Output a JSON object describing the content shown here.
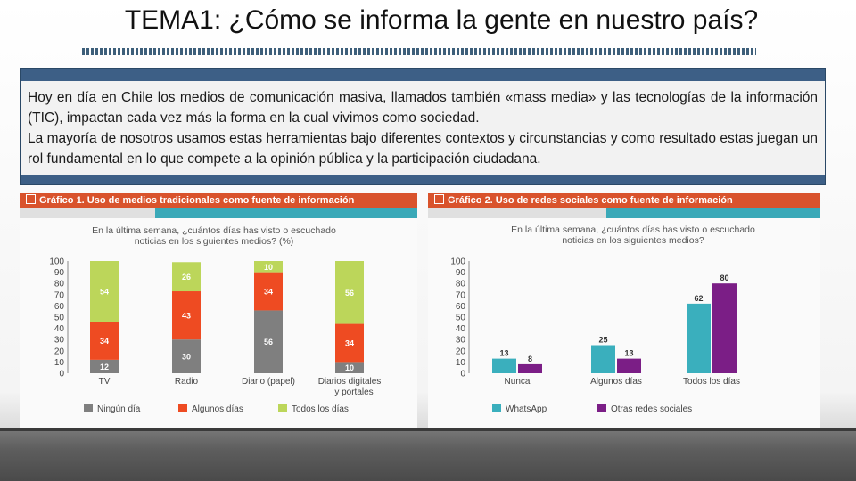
{
  "slide": {
    "title": "TEMA1: ¿Cómo se informa la gente en nuestro país?",
    "paragraphs": [
      "Hoy en día en Chile los medios de comunicación masiva, llamados también  «mass media» y las tecnologías de la información (TIC), impactan  cada vez más la forma en la cual vivimos como sociedad.",
      "La mayoría de nosotros usamos  estas herramientas bajo diferentes contextos y circunstancias y como resultado estas juegan un rol fundamental en lo que compete a la opinión pública y la participación ciudadana."
    ]
  },
  "chart_data": [
    {
      "type": "bar",
      "stacked": true,
      "header": "Gráfico 1. Uso de medios tradicionales como fuente de información",
      "title": "En la última semana, ¿cuántos días has visto o escuchado noticias en los siguientes medios? (%)",
      "categories": [
        "TV",
        "Radio",
        "Diario (papel)",
        "Diarios digitales y portales"
      ],
      "series": [
        {
          "name": "Ningún día",
          "color": "#7f7f7f",
          "values": [
            12,
            30,
            56,
            10
          ]
        },
        {
          "name": "Algunos días",
          "color": "#ee4b22",
          "values": [
            34,
            43,
            34,
            34
          ]
        },
        {
          "name": "Todos los días",
          "color": "#bcd65a",
          "values": [
            54,
            26,
            10,
            56
          ]
        }
      ],
      "yticks": [
        0,
        10,
        20,
        30,
        40,
        50,
        60,
        70,
        80,
        90,
        100
      ],
      "ylim": [
        0,
        100
      ],
      "legend": "bottom"
    },
    {
      "type": "bar",
      "stacked": false,
      "header": "Gráfico 2. Uso de redes sociales como fuente de información",
      "title": "En la última semana, ¿cuántos días has visto o escuchado noticias en los siguientes medios?",
      "categories": [
        "Nunca",
        "Algunos días",
        "Todos los días"
      ],
      "series": [
        {
          "name": "WhatsApp",
          "color": "#3aafbd",
          "values": [
            13,
            25,
            62
          ]
        },
        {
          "name": "Otras redes sociales",
          "color": "#7b1e86",
          "values": [
            8,
            13,
            80
          ]
        }
      ],
      "yticks": [
        0,
        10,
        20,
        30,
        40,
        50,
        60,
        70,
        80,
        90,
        100
      ],
      "ylim": [
        0,
        100
      ],
      "legend": "bottom"
    }
  ]
}
